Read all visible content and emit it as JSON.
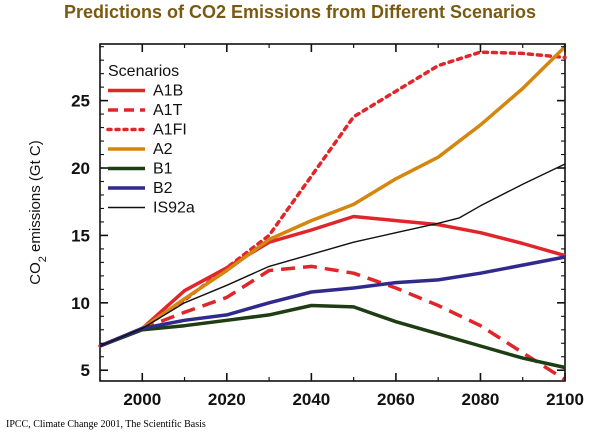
{
  "page": {
    "title": "Predictions  of CO2 Emissions from Different Scenarios",
    "footnote": "IPCC, Climate Change 2001, The Scientific Basis"
  },
  "chart_data": {
    "type": "line",
    "title": "Predictions  of CO2 Emissions from Different Scenarios",
    "xlabel": "",
    "ylabel": "CO2 emissions (Gt C)",
    "ylabel_parts": {
      "main": "CO",
      "sub": "2",
      "rest": " emissions (Gt C)"
    },
    "xlim": [
      1990,
      2100
    ],
    "ylim": [
      4.2,
      29.2
    ],
    "xticks": [
      2000,
      2020,
      2040,
      2060,
      2080,
      2100
    ],
    "yticks": [
      5,
      10,
      15,
      20,
      25
    ],
    "legend": {
      "title": "Scenarios",
      "position": "top-left"
    },
    "grid": false,
    "series": [
      {
        "name": "A1B",
        "color": "#e0262b",
        "dash": "solid",
        "width": 3.5,
        "x": [
          1990,
          2000,
          2010,
          2020,
          2030,
          2040,
          2050,
          2060,
          2070,
          2080,
          2090,
          2100
        ],
        "y": [
          6.8,
          8.1,
          10.9,
          12.6,
          14.5,
          15.4,
          16.4,
          16.1,
          15.8,
          15.2,
          14.4,
          13.5
        ]
      },
      {
        "name": "A1T",
        "color": "#e0262b",
        "dash": "dashed",
        "width": 3.5,
        "x": [
          1990,
          2000,
          2010,
          2020,
          2030,
          2040,
          2050,
          2060,
          2070,
          2080,
          2090,
          2100
        ],
        "y": [
          6.8,
          8.1,
          9.3,
          10.4,
          12.4,
          12.7,
          12.2,
          11.1,
          9.8,
          8.3,
          6.3,
          4.3
        ]
      },
      {
        "name": "A1FI",
        "color": "#e0262b",
        "dash": "dotted",
        "width": 3.5,
        "x": [
          1990,
          2000,
          2010,
          2020,
          2030,
          2040,
          2050,
          2060,
          2070,
          2080,
          2090,
          2100
        ],
        "y": [
          6.8,
          8.1,
          10.2,
          12.6,
          15.0,
          19.4,
          23.8,
          25.7,
          27.6,
          28.6,
          28.5,
          28.2
        ]
      },
      {
        "name": "A2",
        "color": "#d4860e",
        "dash": "solid",
        "width": 3.5,
        "x": [
          1990,
          2000,
          2010,
          2020,
          2030,
          2040,
          2050,
          2060,
          2070,
          2080,
          2090,
          2100
        ],
        "y": [
          6.8,
          8.1,
          10.3,
          12.4,
          14.7,
          16.1,
          17.3,
          19.2,
          20.8,
          23.2,
          25.9,
          29.0
        ]
      },
      {
        "name": "B1",
        "color": "#1e3d12",
        "dash": "solid",
        "width": 3.5,
        "x": [
          1990,
          2000,
          2010,
          2020,
          2030,
          2040,
          2050,
          2060,
          2070,
          2080,
          2090,
          2100
        ],
        "y": [
          6.8,
          8.0,
          8.3,
          8.7,
          9.1,
          9.8,
          9.7,
          8.6,
          7.7,
          6.8,
          5.9,
          5.2
        ]
      },
      {
        "name": "B2",
        "color": "#2f2a8c",
        "dash": "solid",
        "width": 3.5,
        "x": [
          1990,
          2000,
          2010,
          2020,
          2030,
          2040,
          2050,
          2060,
          2070,
          2080,
          2090,
          2100
        ],
        "y": [
          6.8,
          8.1,
          8.7,
          9.1,
          10.0,
          10.8,
          11.1,
          11.5,
          11.7,
          12.2,
          12.8,
          13.4
        ]
      },
      {
        "name": "IS92a",
        "color": "#111111",
        "dash": "solid",
        "width": 1.4,
        "x": [
          1990,
          2000,
          2010,
          2020,
          2030,
          2040,
          2050,
          2060,
          2070,
          2075,
          2080,
          2090,
          2100
        ],
        "y": [
          6.8,
          8.1,
          10.0,
          11.3,
          12.7,
          13.6,
          14.5,
          15.2,
          15.9,
          16.3,
          17.2,
          18.8,
          20.3
        ]
      }
    ]
  }
}
